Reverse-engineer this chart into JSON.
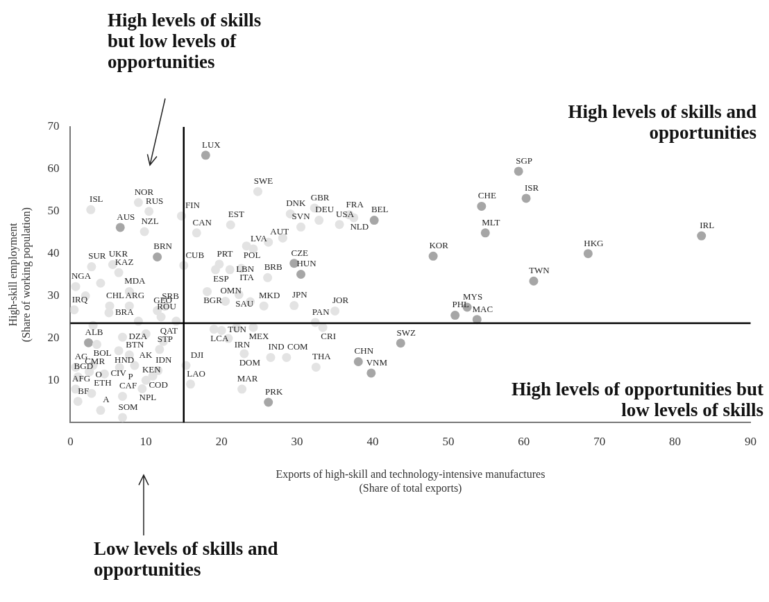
{
  "chart_data": {
    "type": "scatter",
    "xlabel": "Exports of high-skill and technology-intensive manufactures\n(Share of total exports)",
    "ylabel": "High-skill employment\n(Share of working population)",
    "xlim": [
      0,
      90
    ],
    "xticks": [
      0,
      10,
      20,
      30,
      40,
      50,
      60,
      70,
      80,
      90
    ],
    "ylim": [
      0,
      70
    ],
    "yticks": [
      10,
      20,
      30,
      40,
      50,
      60,
      70
    ],
    "grid": false,
    "legend": false,
    "marker": "circle",
    "ref_lines": [
      {
        "axis": "x",
        "value": 15,
        "color": "#000000"
      },
      {
        "axis": "y",
        "value": 23.5,
        "color": "#000000"
      }
    ],
    "annotations": [
      "High levels of skills but low levels of opportunities",
      "High levels of skills and opportunities",
      "High levels of opportunities but low levels of skills",
      "Low levels of skills and opportunities"
    ],
    "series": [
      {
        "x": [
          17.9,
          2.7,
          9.0,
          10.4,
          6.6,
          9.8,
          14.7,
          16.7,
          11.5,
          5.6,
          6.4,
          2.8,
          15.0,
          19.7,
          19.2,
          24.8,
          21.2,
          29.1,
          32.3,
          32.9,
          35.6,
          36.9,
          37.5,
          40.2,
          30.5,
          24.2,
          23.3,
          26.2,
          29.6,
          30.5,
          22.6,
          21.1,
          26.1,
          22.3,
          18.1,
          25.6,
          29.6,
          20.5,
          32.4,
          33.4,
          35.0,
          19.0,
          20.0,
          22.0,
          24.2,
          23.0,
          26.5,
          28.6,
          32.5,
          38.1,
          39.8,
          22.7,
          26.2,
          15.9,
          59.3,
          60.3,
          54.4,
          54.9,
          48.0,
          68.5,
          83.5,
          61.3,
          50.9,
          52.5,
          53.8,
          43.7,
          7.8,
          0.7,
          0.5,
          5.2,
          7.8,
          5.1,
          2.4,
          3.5,
          7.8,
          6.4,
          12.3,
          6.9,
          11.8,
          11.6,
          10.9,
          0.7,
          1.0,
          0.7,
          2.8,
          6.9,
          1.0,
          6.9,
          4.0,
          15.3,
          12.5,
          12.0,
          11.5,
          3.0,
          2.5,
          4.5,
          6.5,
          8.5,
          10.0,
          9.5,
          28.1,
          23.8,
          20.9,
          2.0,
          4.0,
          3.0,
          9.0,
          10.0,
          14.0
        ],
        "values": [
          63.3,
          50.4,
          52.1,
          50.0,
          46.2,
          45.2,
          48.9,
          44.9,
          39.2,
          37.4,
          35.5,
          36.9,
          37.2,
          37.5,
          36.2,
          54.7,
          46.8,
          49.4,
          50.8,
          47.9,
          46.9,
          49.2,
          48.5,
          47.9,
          46.3,
          41.1,
          41.8,
          42.7,
          37.7,
          35.1,
          36.5,
          36.2,
          34.3,
          30.3,
          31.0,
          27.6,
          27.7,
          28.7,
          23.7,
          22.5,
          26.4,
          22.1,
          21.8,
          22.5,
          22.5,
          16.3,
          15.4,
          15.4,
          13.1,
          14.4,
          11.7,
          7.9,
          4.8,
          9.1,
          59.5,
          53.1,
          51.2,
          44.9,
          39.4,
          40.0,
          44.2,
          33.5,
          25.4,
          27.3,
          24.4,
          18.8,
          31.0,
          32.2,
          26.7,
          27.6,
          27.6,
          26.0,
          18.9,
          18.5,
          16.0,
          17.0,
          19.2,
          20.2,
          17.3,
          12.3,
          11.0,
          13.1,
          10.8,
          7.9,
          6.9,
          6.2,
          5.0,
          1.2,
          2.9,
          13.5,
          27.5,
          25.0,
          26.5,
          13.5,
          12.0,
          11.5,
          13.0,
          13.5,
          10.0,
          8.0,
          43.7,
          28.6,
          19.9,
          30.0,
          33.0,
          23.0,
          24.0,
          21.0,
          24.0
        ],
        "value_labels": [
          "LUX",
          "ISL",
          "NOR",
          "RUS",
          "AUS",
          "NZL",
          "FIN",
          "CAN",
          "BRN",
          "UKR",
          "KAZ",
          "SUR",
          "CUB",
          "PRT",
          "ESP",
          "SWE",
          "EST",
          "DNK",
          "GBR",
          "DEU",
          "USA",
          "FRA",
          "NLD",
          "BEL",
          "SVN",
          "LVA",
          "POL",
          "AUT",
          "CZE",
          "HUN",
          "ITA",
          "LBN",
          "BRB",
          "SAU",
          "BGR",
          "MKD",
          "JPN",
          "OMN",
          "PAN",
          "CRI",
          "JOR",
          "LCA",
          "TUN",
          "IRN",
          "MEX",
          "DOM",
          "IND",
          "COM",
          "THA",
          "CHN",
          "VNM",
          "MAR",
          "PRK",
          "LAO",
          "SGP",
          "ISR",
          "CHE",
          "MLT",
          "KOR",
          "HKG",
          "IRL",
          "TWN",
          "PHL",
          "MYS",
          "MAC",
          "SWZ",
          "MDA",
          "NGA",
          "IRQ",
          "CHL",
          "ARG",
          "BRA",
          "ALB",
          "BOL",
          "BTN",
          "HND",
          "QAT",
          "DZA",
          "STP",
          "IDN",
          "COD",
          "AG",
          "BGD",
          "AFG",
          "ETH",
          "CAF",
          "BF",
          "SOM",
          "A",
          "DJI",
          "SRB",
          "ROU",
          "GEO",
          "O",
          "CMR",
          "CIV",
          "P",
          "AK",
          "KEN",
          "NPL",
          null,
          null,
          null,
          null,
          null,
          null,
          null,
          null,
          null
        ],
        "colors": [
          "#a6a6a6",
          "#e3e3e3",
          "#e3e3e3",
          "#e3e3e3",
          "#a6a6a6",
          "#e3e3e3",
          "#e3e3e3",
          "#e3e3e3",
          "#a6a6a6",
          "#e3e3e3",
          "#e3e3e3",
          "#e3e3e3",
          "#e3e3e3",
          "#e3e3e3",
          "#e3e3e3",
          "#e3e3e3",
          "#e3e3e3",
          "#e3e3e3",
          "#e3e3e3",
          "#e3e3e3",
          "#e3e3e3",
          "#e3e3e3",
          "#e3e3e3",
          "#a6a6a6",
          "#e3e3e3",
          "#e3e3e3",
          "#e3e3e3",
          "#e3e3e3",
          "#a6a6a6",
          "#a6a6a6",
          "#e3e3e3",
          "#e3e3e3",
          "#e3e3e3",
          "#e3e3e3",
          "#e3e3e3",
          "#e3e3e3",
          "#e3e3e3",
          "#e3e3e3",
          "#e3e3e3",
          "#e3e3e3",
          "#e3e3e3",
          "#e3e3e3",
          "#e3e3e3",
          "#e3e3e3",
          "#e3e3e3",
          "#e3e3e3",
          "#e3e3e3",
          "#e3e3e3",
          "#e3e3e3",
          "#a6a6a6",
          "#a6a6a6",
          "#e3e3e3",
          "#a6a6a6",
          "#e3e3e3",
          "#a6a6a6",
          "#a6a6a6",
          "#a6a6a6",
          "#a6a6a6",
          "#a6a6a6",
          "#a6a6a6",
          "#a6a6a6",
          "#a6a6a6",
          "#a6a6a6",
          "#a6a6a6",
          "#a6a6a6",
          "#a6a6a6",
          "#e3e3e3",
          "#e3e3e3",
          "#e3e3e3",
          "#e3e3e3",
          "#e3e3e3",
          "#e3e3e3",
          "#a6a6a6",
          "#e3e3e3",
          "#e3e3e3",
          "#e3e3e3",
          "#e3e3e3",
          "#e3e3e3",
          "#e3e3e3",
          "#e3e3e3",
          "#e3e3e3",
          "#e3e3e3",
          "#e3e3e3",
          "#e3e3e3",
          "#e3e3e3",
          "#e3e3e3",
          "#e3e3e3",
          "#e3e3e3",
          "#e3e3e3",
          "#e3e3e3",
          "#e3e3e3",
          "#e3e3e3",
          "#e3e3e3",
          "#e3e3e3",
          "#e3e3e3",
          "#e3e3e3",
          "#e3e3e3",
          "#e3e3e3",
          "#e3e3e3",
          "#e3e3e3",
          "#e3e3e3",
          "#e3e3e3",
          "#e3e3e3",
          "#e3e3e3",
          "#e3e3e3",
          "#e3e3e3",
          "#e3e3e3",
          "#e3e3e3",
          "#e3e3e3"
        ]
      }
    ]
  }
}
